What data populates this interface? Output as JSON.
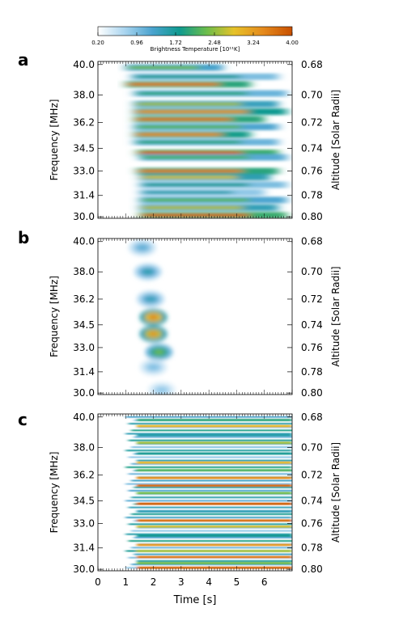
{
  "colorbar": {
    "ticks": [
      "0.20",
      "0.96",
      "1.72",
      "2.48",
      "3.24",
      "4.00"
    ],
    "label": "Brightness Temperature [10¹¹K]",
    "range": [
      0.2,
      4.0
    ],
    "colors": [
      "#ffffff",
      "#a8d4ef",
      "#4aa3cf",
      "#0f9a8f",
      "#6bbd4b",
      "#e6c229",
      "#e58a1d",
      "#c85000"
    ]
  },
  "chart_data": [
    {
      "type": "heatmap",
      "panel": "a",
      "xlabel": "",
      "ylabel": "Frequency [MHz]",
      "y2label": "Altitude [Solar Radii]",
      "xlim": [
        0,
        7
      ],
      "ylim": [
        29.9,
        40.2
      ],
      "yticks": [
        "40.0",
        "38.0",
        "36.2",
        "34.5",
        "33.0",
        "31.4",
        "30.0"
      ],
      "y2ticks": [
        "0.68",
        "0.70",
        "0.72",
        "0.74",
        "0.76",
        "0.78",
        "0.80"
      ],
      "striations": [
        {
          "f": 39.8,
          "t0": 1.0,
          "t1": 4.5,
          "peak": 2.4
        },
        {
          "f": 39.2,
          "t0": 1.2,
          "t1": 6.5,
          "peak": 1.8
        },
        {
          "f": 38.7,
          "t0": 1.0,
          "t1": 5.5,
          "peak": 3.6
        },
        {
          "f": 38.1,
          "t0": 1.3,
          "t1": 6.8,
          "peak": 2.0
        },
        {
          "f": 37.4,
          "t0": 1.3,
          "t1": 6.5,
          "peak": 2.6
        },
        {
          "f": 36.9,
          "t0": 1.3,
          "t1": 6.8,
          "peak": 3.3
        },
        {
          "f": 36.4,
          "t0": 1.3,
          "t1": 6.0,
          "peak": 3.6
        },
        {
          "f": 35.9,
          "t0": 1.3,
          "t1": 6.5,
          "peak": 2.3
        },
        {
          "f": 35.4,
          "t0": 1.3,
          "t1": 5.5,
          "peak": 3.4
        },
        {
          "f": 34.9,
          "t0": 1.3,
          "t1": 6.5,
          "peak": 2.0
        },
        {
          "f": 34.2,
          "t0": 1.4,
          "t1": 6.5,
          "peak": 3.8
        },
        {
          "f": 33.9,
          "t0": 1.5,
          "t1": 6.8,
          "peak": 2.2
        },
        {
          "f": 33.0,
          "t0": 1.4,
          "t1": 6.5,
          "peak": 3.6
        },
        {
          "f": 32.6,
          "t0": 1.5,
          "t1": 6.2,
          "peak": 2.8
        },
        {
          "f": 32.1,
          "t0": 1.5,
          "t1": 6.8,
          "peak": 1.8
        },
        {
          "f": 31.6,
          "t0": 1.5,
          "t1": 6.0,
          "peak": 1.6
        },
        {
          "f": 31.1,
          "t0": 1.5,
          "t1": 6.8,
          "peak": 2.3
        },
        {
          "f": 30.6,
          "t0": 1.5,
          "t1": 6.5,
          "peak": 2.7
        },
        {
          "f": 30.1,
          "t0": 1.5,
          "t1": 6.8,
          "peak": 3.8
        }
      ]
    },
    {
      "type": "heatmap",
      "panel": "b",
      "xlabel": "",
      "ylabel": "Frequency [MHz]",
      "y2label": "Altitude [Solar Radii]",
      "xlim": [
        0,
        7
      ],
      "ylim": [
        29.9,
        40.2
      ],
      "yticks": [
        "40.0",
        "38.0",
        "36.2",
        "34.5",
        "33.0",
        "31.4",
        "30.0"
      ],
      "y2ticks": [
        "0.68",
        "0.70",
        "0.72",
        "0.74",
        "0.76",
        "0.78",
        "0.80"
      ],
      "blobs": [
        {
          "t": 1.6,
          "f": 39.6,
          "peak": 1.2
        },
        {
          "t": 1.8,
          "f": 38.0,
          "peak": 1.6
        },
        {
          "t": 1.9,
          "f": 36.2,
          "peak": 1.5
        },
        {
          "t": 2.0,
          "f": 35.0,
          "peak": 3.6
        },
        {
          "t": 2.0,
          "f": 33.9,
          "peak": 3.4
        },
        {
          "t": 2.2,
          "f": 32.7,
          "peak": 2.4
        },
        {
          "t": 2.0,
          "f": 31.7,
          "peak": 1.0
        },
        {
          "t": 2.3,
          "f": 30.2,
          "peak": 0.9
        }
      ]
    },
    {
      "type": "heatmap",
      "panel": "c",
      "xlabel": "Time [s]",
      "ylabel": "Frequency [MHz]",
      "y2label": "Altitude [Solar Radii]",
      "xlim": [
        0,
        7
      ],
      "ylim": [
        29.9,
        40.2
      ],
      "xticks": [
        "0",
        "1",
        "2",
        "3",
        "4",
        "5",
        "6"
      ],
      "yticks": [
        "40.0",
        "38.0",
        "36.2",
        "34.5",
        "33.0",
        "31.4",
        "30.0"
      ],
      "y2ticks": [
        "0.68",
        "0.70",
        "0.72",
        "0.74",
        "0.76",
        "0.78",
        "0.80"
      ],
      "lines": [
        {
          "f": 39.8,
          "peak": 2.0
        },
        {
          "f": 39.4,
          "peak": 3.0
        },
        {
          "f": 38.8,
          "peak": 1.6
        },
        {
          "f": 38.3,
          "peak": 2.6
        },
        {
          "f": 37.6,
          "peak": 1.8
        },
        {
          "f": 37.0,
          "peak": 3.0
        },
        {
          "f": 36.5,
          "peak": 2.2
        },
        {
          "f": 36.0,
          "peak": 3.4
        },
        {
          "f": 35.5,
          "peak": 3.7
        },
        {
          "f": 35.0,
          "peak": 2.4
        },
        {
          "f": 34.3,
          "peak": 3.9
        },
        {
          "f": 33.8,
          "peak": 1.5
        },
        {
          "f": 33.2,
          "peak": 3.7
        },
        {
          "f": 32.8,
          "peak": 2.8
        },
        {
          "f": 32.2,
          "peak": 1.8
        },
        {
          "f": 31.6,
          "peak": 3.3
        },
        {
          "f": 31.2,
          "peak": 2.6
        },
        {
          "f": 30.8,
          "peak": 3.6
        },
        {
          "f": 30.4,
          "peak": 2.4
        },
        {
          "f": 30.1,
          "peak": 3.8
        }
      ]
    }
  ]
}
